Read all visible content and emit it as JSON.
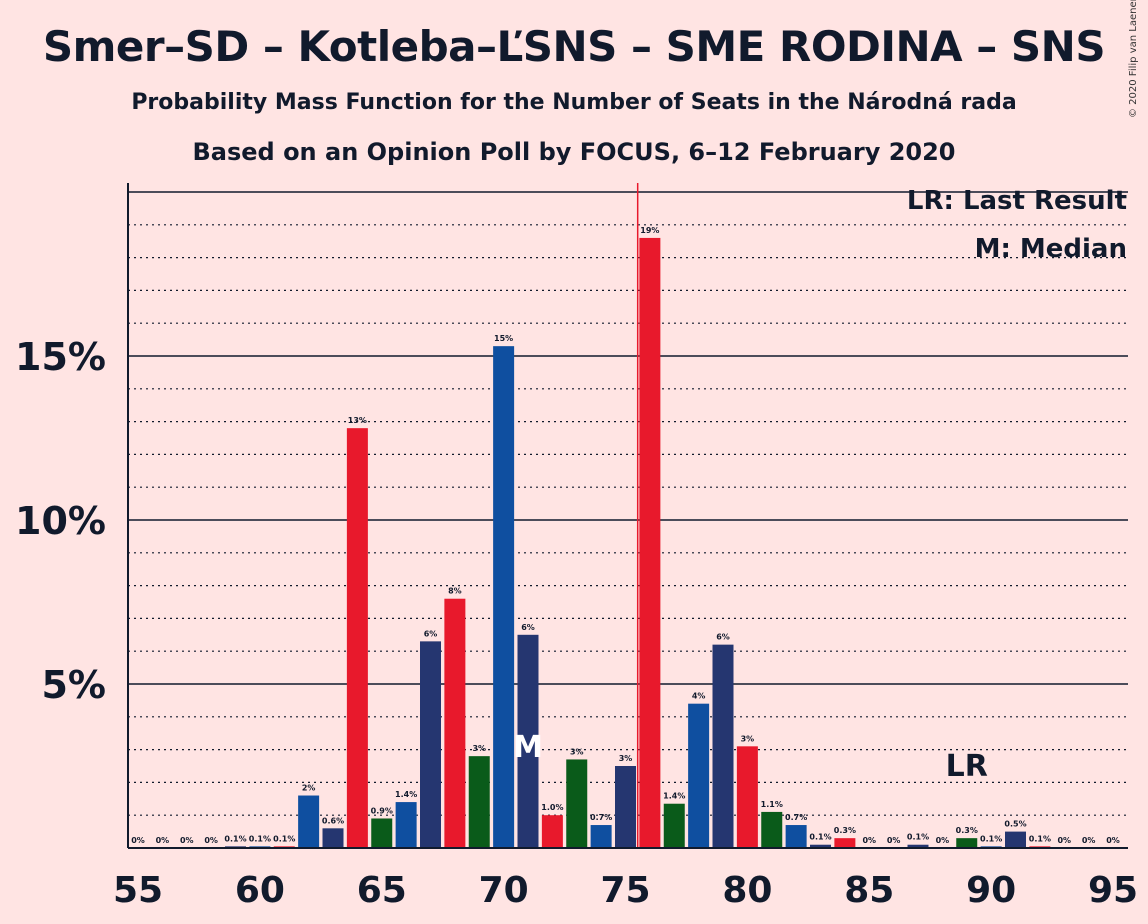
{
  "title": "Smer–SD – Kotleba–ĽSNS – SME RODINA – SNS",
  "subtitle": "Probability Mass Function for the Number of Seats in the Národná rada",
  "subtitle2": "Based on an Opinion Poll by FOCUS, 6–12 February 2020",
  "copyright": "© 2020 Filip van Laenen",
  "legend": {
    "last_result": "LR: Last Result",
    "median": "M: Median"
  },
  "colors": {
    "background": "#FFE4E3",
    "blue_dark": "#253670",
    "blue": "#0F4FA0",
    "red": "#E8192C",
    "green": "#0A5B1A",
    "majority_line": "#E8192C"
  },
  "chart_data": {
    "type": "bar",
    "xlabel": "",
    "ylabel": "",
    "x_ticks": [
      55,
      60,
      65,
      70,
      75,
      80,
      85,
      90,
      95
    ],
    "y_ticks": [
      {
        "value": 5,
        "label": "5%"
      },
      {
        "value": 10,
        "label": "10%"
      },
      {
        "value": 15,
        "label": "15%"
      }
    ],
    "ylim": [
      0,
      20.5
    ],
    "xlim": [
      54.5,
      95.5
    ],
    "grid": "dotted lines every 1%, solid at 5% steps",
    "majority_line_x": 75.5,
    "median_x": 71,
    "median_label": "M",
    "last_result_x": 89,
    "last_result_label": "LR",
    "bars": [
      {
        "x": 55,
        "value": 0.0,
        "label": "0%",
        "color": "blue_dark"
      },
      {
        "x": 56,
        "value": 0.0,
        "label": "0%",
        "color": "blue"
      },
      {
        "x": 57,
        "value": 0.0,
        "label": "0%",
        "color": "red"
      },
      {
        "x": 58,
        "value": 0.0,
        "label": "0%",
        "color": "green"
      },
      {
        "x": 59,
        "value": 0.05,
        "label": "0.1%",
        "color": "blue_dark"
      },
      {
        "x": 60,
        "value": 0.05,
        "label": "0.1%",
        "color": "blue"
      },
      {
        "x": 61,
        "value": 0.05,
        "label": "0.1%",
        "color": "red"
      },
      {
        "x": 62,
        "value": 1.6,
        "label": "2%",
        "color": "blue"
      },
      {
        "x": 63,
        "value": 0.6,
        "label": "0.6%",
        "color": "blue_dark"
      },
      {
        "x": 64,
        "value": 12.8,
        "label": "13%",
        "color": "red"
      },
      {
        "x": 65,
        "value": 0.9,
        "label": "0.9%",
        "color": "green"
      },
      {
        "x": 66,
        "value": 1.4,
        "label": "1.4%",
        "color": "blue"
      },
      {
        "x": 67,
        "value": 6.3,
        "label": "6%",
        "color": "blue_dark"
      },
      {
        "x": 68,
        "value": 7.6,
        "label": "8%",
        "color": "red"
      },
      {
        "x": 69,
        "value": 2.8,
        "label": "3%",
        "color": "green"
      },
      {
        "x": 70,
        "value": 15.3,
        "label": "15%",
        "color": "blue"
      },
      {
        "x": 71,
        "value": 6.5,
        "label": "6%",
        "color": "blue_dark"
      },
      {
        "x": 72,
        "value": 1.0,
        "label": "1.0%",
        "color": "red"
      },
      {
        "x": 73,
        "value": 2.7,
        "label": "3%",
        "color": "green"
      },
      {
        "x": 74,
        "value": 0.7,
        "label": "0.7%",
        "color": "blue"
      },
      {
        "x": 75,
        "value": 2.5,
        "label": "3%",
        "color": "blue_dark"
      },
      {
        "x": 76,
        "value": 18.6,
        "label": "19%",
        "color": "red"
      },
      {
        "x": 77,
        "value": 1.35,
        "label": "1.4%",
        "color": "green"
      },
      {
        "x": 78,
        "value": 4.4,
        "label": "4%",
        "color": "blue"
      },
      {
        "x": 79,
        "value": 6.2,
        "label": "6%",
        "color": "blue_dark"
      },
      {
        "x": 80,
        "value": 3.1,
        "label": "3%",
        "color": "red"
      },
      {
        "x": 81,
        "value": 1.1,
        "label": "1.1%",
        "color": "green"
      },
      {
        "x": 82,
        "value": 0.7,
        "label": "0.7%",
        "color": "blue"
      },
      {
        "x": 83,
        "value": 0.1,
        "label": "0.1%",
        "color": "blue_dark"
      },
      {
        "x": 84,
        "value": 0.3,
        "label": "0.3%",
        "color": "red"
      },
      {
        "x": 85,
        "value": 0.0,
        "label": "0%",
        "color": "green"
      },
      {
        "x": 86,
        "value": 0.0,
        "label": "0%",
        "color": "blue"
      },
      {
        "x": 87,
        "value": 0.1,
        "label": "0.1%",
        "color": "blue_dark"
      },
      {
        "x": 88,
        "value": 0.0,
        "label": "0%",
        "color": "red"
      },
      {
        "x": 89,
        "value": 0.3,
        "label": "0.3%",
        "color": "green"
      },
      {
        "x": 90,
        "value": 0.05,
        "label": "0.1%",
        "color": "blue"
      },
      {
        "x": 91,
        "value": 0.5,
        "label": "0.5%",
        "color": "blue_dark"
      },
      {
        "x": 92,
        "value": 0.05,
        "label": "0.1%",
        "color": "red"
      },
      {
        "x": 93,
        "value": 0.0,
        "label": "0%",
        "color": "green"
      },
      {
        "x": 94,
        "value": 0.0,
        "label": "0%",
        "color": "blue"
      },
      {
        "x": 95,
        "value": 0.0,
        "label": "0%",
        "color": "blue_dark"
      }
    ]
  }
}
